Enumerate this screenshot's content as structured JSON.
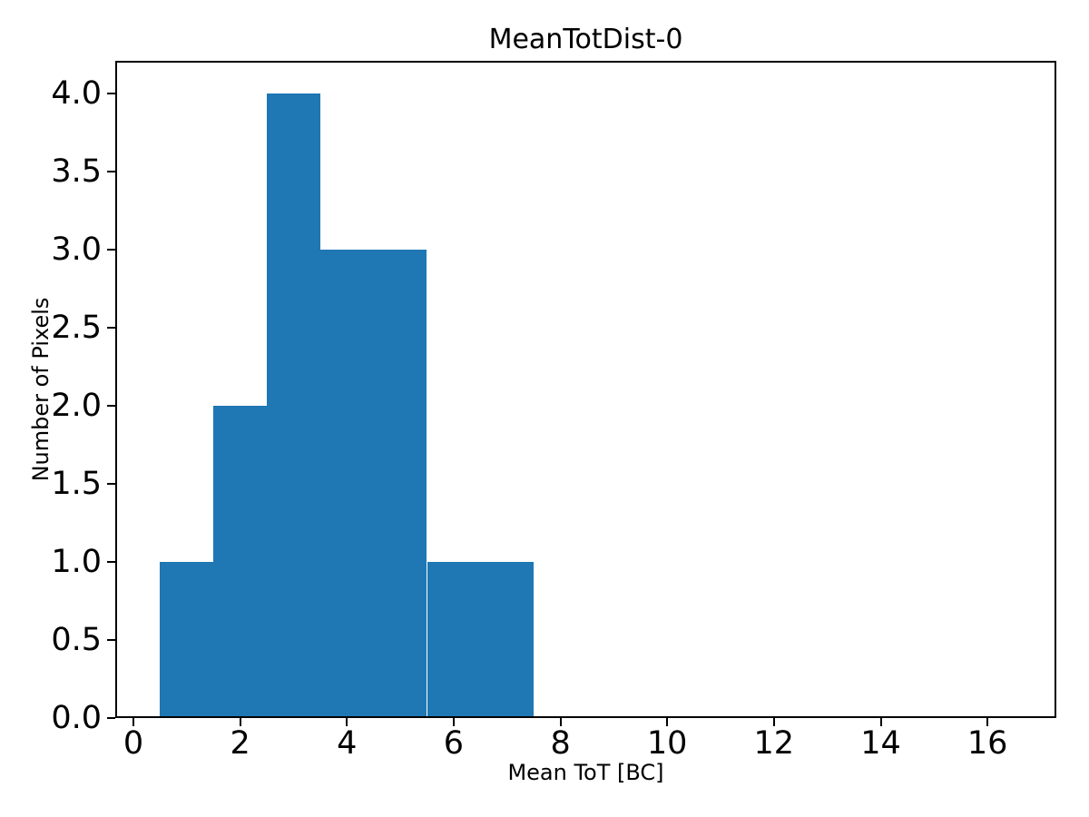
{
  "figure": {
    "title": "MeanTotDist-0",
    "xlabel": "Mean ToT [BC]",
    "ylabel": "Number of Pixels"
  },
  "chart_data": {
    "type": "bar",
    "subtype": "histogram",
    "title": "MeanTotDist-0",
    "xlabel": "Mean ToT [BC]",
    "ylabel": "Number of Pixels",
    "bin_edges": [
      0.5,
      1.5,
      2.5,
      3.5,
      4.5,
      5.5,
      6.5,
      7.5
    ],
    "counts": [
      1,
      2,
      4,
      3,
      3,
      1,
      1
    ],
    "total_pixels": 15,
    "bar_color": "#1f77b4",
    "axis_color": "#000000",
    "background_color": "#ffffff",
    "xlim": [
      -0.34,
      17.29
    ],
    "ylim": [
      0,
      4.21
    ],
    "xticks": {
      "values": [
        0,
        2,
        4,
        6,
        8,
        10,
        12,
        14,
        16
      ],
      "labels": [
        "0",
        "2",
        "4",
        "6",
        "8",
        "10",
        "12",
        "14",
        "16"
      ]
    },
    "yticks": {
      "values": [
        0,
        0.5,
        1,
        1.5,
        2,
        2.5,
        3,
        3.5,
        4
      ],
      "labels": [
        "0.0",
        "0.5",
        "1.0",
        "1.5",
        "2.0",
        "2.5",
        "3.0",
        "3.5",
        "4.0"
      ]
    },
    "grid": false,
    "legend": null
  }
}
